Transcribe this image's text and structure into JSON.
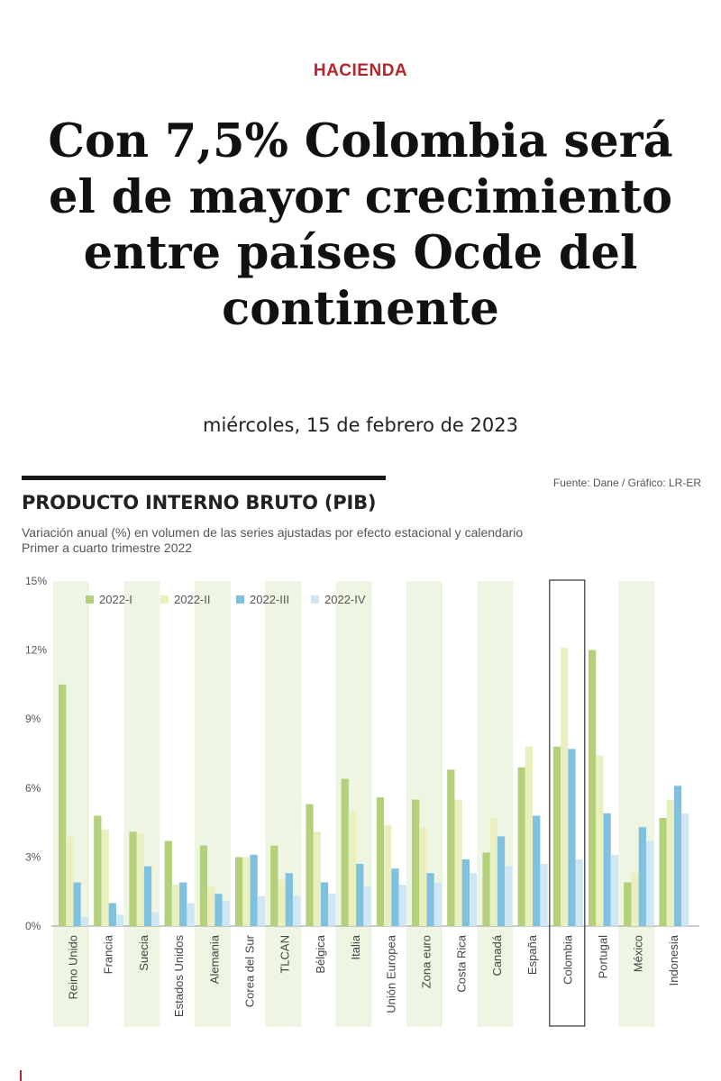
{
  "article": {
    "section": "HACIENDA",
    "headline": "Con 7,5% Colombia será el de mayor crecimiento entre países Ocde del continente",
    "date": "miércoles, 15 de febrero de 2023"
  },
  "colors": {
    "accent": "#b3262b",
    "band": "#eef5e3",
    "series": [
      "#b5d07b",
      "#e9efbe",
      "#80c1e0",
      "#cfe6f4"
    ]
  },
  "chart_data": {
    "type": "bar",
    "title": "PRODUCTO INTERNO BRUTO (PIB)",
    "subtitle": [
      "Variación anual (%) en volumen de las series ajustadas por efecto estacional y calendario",
      "Primer a cuarto trimestre 2022"
    ],
    "source": "Fuente: Dane / Gráfico: LR-ER",
    "categories": [
      "Reino Unido",
      "Francia",
      "Suecia",
      "Estados Unidos",
      "Alemania",
      "Corea del Sur",
      "TLCAN",
      "Bélgica",
      "Italia",
      "Unión Europea",
      "Zona euro",
      "Costa Rica",
      "Canadá",
      "España",
      "Colombia",
      "Portugal",
      "México",
      "Indonesia"
    ],
    "series": [
      {
        "name": "2022-I",
        "values": [
          10.5,
          4.8,
          4.1,
          3.7,
          3.5,
          3.0,
          3.5,
          5.3,
          6.4,
          5.6,
          5.5,
          6.8,
          3.2,
          6.9,
          7.8,
          12.0,
          1.9,
          4.7
        ]
      },
      {
        "name": "2022-II",
        "values": [
          3.9,
          4.2,
          4.0,
          1.8,
          1.7,
          3.0,
          2.0,
          4.1,
          5.0,
          4.4,
          4.3,
          5.5,
          4.7,
          7.8,
          12.1,
          7.4,
          2.3,
          5.5
        ]
      },
      {
        "name": "2022-III",
        "values": [
          1.9,
          1.0,
          2.6,
          1.9,
          1.4,
          3.1,
          2.3,
          1.9,
          2.7,
          2.5,
          2.3,
          2.9,
          3.9,
          4.8,
          7.7,
          4.9,
          4.3,
          6.1
        ]
      },
      {
        "name": "2022-IV",
        "values": [
          0.4,
          0.5,
          0.6,
          1.0,
          1.1,
          1.3,
          1.3,
          1.4,
          1.7,
          1.8,
          1.9,
          2.3,
          2.6,
          2.7,
          2.9,
          3.1,
          3.7,
          4.9
        ]
      }
    ],
    "y_ticks": [
      "0%",
      "3%",
      "6%",
      "9%",
      "12%",
      "15%"
    ],
    "ylim": [
      0,
      15
    ],
    "shaded_categories": [
      "Reino Unido",
      "Suecia",
      "Alemania",
      "TLCAN",
      "Italia",
      "Zona euro",
      "Canadá",
      "México"
    ],
    "highlighted_category": "Colombia",
    "legend": "top-left",
    "grid": false
  }
}
